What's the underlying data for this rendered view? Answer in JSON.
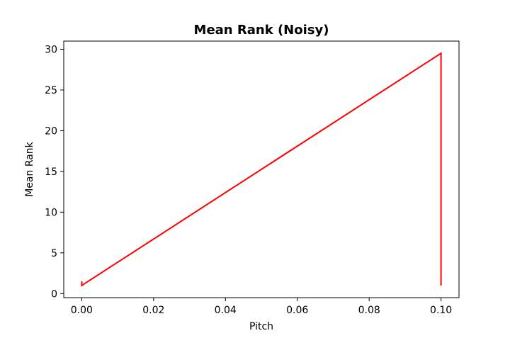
{
  "chart_data": {
    "type": "line",
    "title": "Mean Rank (Noisy)",
    "xlabel": "Pitch",
    "ylabel": "Mean Rank",
    "xlim": [
      -0.005,
      0.105
    ],
    "ylim": [
      -0.5,
      31
    ],
    "xticks": [
      0.0,
      0.02,
      0.04,
      0.06,
      0.08,
      0.1
    ],
    "xtick_labels": [
      "0.00",
      "0.02",
      "0.04",
      "0.06",
      "0.08",
      "0.10"
    ],
    "yticks": [
      0,
      5,
      10,
      15,
      20,
      25,
      30
    ],
    "ytick_labels": [
      "0",
      "5",
      "10",
      "15",
      "20",
      "25",
      "30"
    ],
    "grid": false,
    "series": [
      {
        "color": "#ff0000",
        "x": [
          0.0,
          0.0,
          0.1,
          0.1
        ],
        "y": [
          1.5,
          1.0,
          29.5,
          1.0
        ]
      }
    ]
  }
}
